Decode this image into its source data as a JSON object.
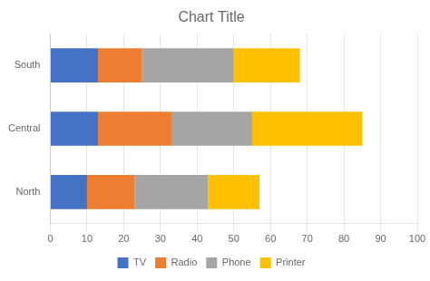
{
  "chart_data": {
    "type": "bar",
    "orientation": "horizontal",
    "stacked": true,
    "title": "Chart Title",
    "categories": [
      "North",
      "Central",
      "South"
    ],
    "series": [
      {
        "name": "TV",
        "color": "#4472C4",
        "values": [
          10,
          13,
          13
        ]
      },
      {
        "name": "Radio",
        "color": "#ED7D31",
        "values": [
          13,
          20,
          12
        ]
      },
      {
        "name": "Phone",
        "color": "#A5A5A5",
        "values": [
          20,
          22,
          25
        ]
      },
      {
        "name": "Printer",
        "color": "#FFC000",
        "values": [
          14,
          30,
          18
        ]
      }
    ],
    "xlim": [
      0,
      100
    ],
    "xticks": [
      0,
      10,
      20,
      30,
      40,
      50,
      60,
      70,
      80,
      90,
      100
    ],
    "grid": "x",
    "legend": "bottom"
  }
}
